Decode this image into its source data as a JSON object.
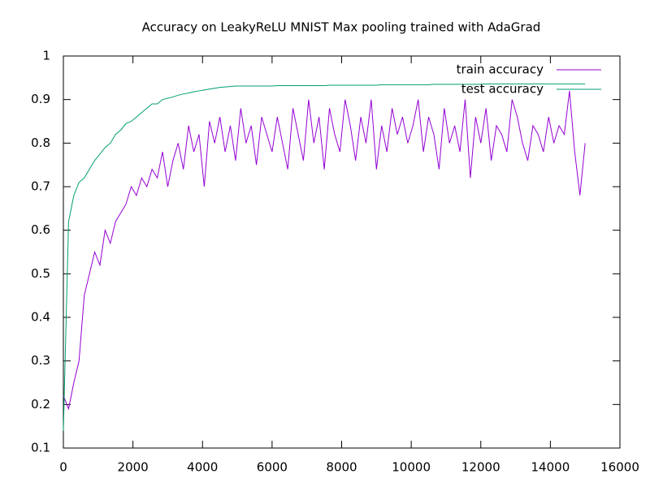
{
  "chart_data": {
    "type": "line",
    "title": "Accuracy on LeakyReLU MNIST Max pooling trained with AdaGrad",
    "x": [
      0,
      150,
      300,
      450,
      600,
      750,
      900,
      1050,
      1200,
      1350,
      1500,
      1650,
      1800,
      1950,
      2100,
      2250,
      2400,
      2550,
      2700,
      2850,
      3000,
      3150,
      3300,
      3450,
      3600,
      3750,
      3900,
      4050,
      4200,
      4350,
      4500,
      4650,
      4800,
      4950,
      5100,
      5250,
      5400,
      5550,
      5700,
      5850,
      6000,
      6150,
      6300,
      6450,
      6600,
      6750,
      6900,
      7050,
      7200,
      7350,
      7500,
      7650,
      7800,
      7950,
      8100,
      8250,
      8400,
      8550,
      8700,
      8850,
      9000,
      9150,
      9300,
      9450,
      9600,
      9750,
      9900,
      10050,
      10200,
      10350,
      10500,
      10650,
      10800,
      10950,
      11100,
      11250,
      11400,
      11550,
      11700,
      11850,
      12000,
      12150,
      12300,
      12450,
      12600,
      12750,
      12900,
      13050,
      13200,
      13350,
      13500,
      13650,
      13800,
      13950,
      14100,
      14250,
      14400,
      14550,
      14700,
      14850,
      15000
    ],
    "series": [
      {
        "name": "train accuracy",
        "color": "#9400d3",
        "values": [
          0.22,
          0.19,
          0.25,
          0.3,
          0.45,
          0.5,
          0.55,
          0.52,
          0.6,
          0.57,
          0.62,
          0.64,
          0.66,
          0.7,
          0.68,
          0.72,
          0.7,
          0.74,
          0.72,
          0.78,
          0.7,
          0.76,
          0.8,
          0.74,
          0.84,
          0.78,
          0.82,
          0.7,
          0.85,
          0.8,
          0.86,
          0.78,
          0.84,
          0.76,
          0.88,
          0.8,
          0.84,
          0.75,
          0.86,
          0.82,
          0.78,
          0.86,
          0.8,
          0.74,
          0.88,
          0.82,
          0.76,
          0.9,
          0.8,
          0.86,
          0.74,
          0.88,
          0.82,
          0.78,
          0.9,
          0.84,
          0.76,
          0.86,
          0.8,
          0.9,
          0.74,
          0.84,
          0.78,
          0.88,
          0.82,
          0.86,
          0.8,
          0.84,
          0.9,
          0.78,
          0.86,
          0.82,
          0.74,
          0.88,
          0.8,
          0.84,
          0.78,
          0.9,
          0.72,
          0.86,
          0.8,
          0.88,
          0.76,
          0.84,
          0.82,
          0.78,
          0.9,
          0.86,
          0.8,
          0.76,
          0.84,
          0.82,
          0.78,
          0.86,
          0.8,
          0.84,
          0.82,
          0.92,
          0.78,
          0.68,
          0.8
        ]
      },
      {
        "name": "test accuracy",
        "color": "#009e73",
        "values": [
          0.14,
          0.62,
          0.68,
          0.71,
          0.72,
          0.74,
          0.76,
          0.775,
          0.79,
          0.8,
          0.82,
          0.83,
          0.845,
          0.85,
          0.86,
          0.87,
          0.88,
          0.89,
          0.89,
          0.9,
          0.903,
          0.906,
          0.91,
          0.913,
          0.915,
          0.918,
          0.92,
          0.922,
          0.924,
          0.926,
          0.928,
          0.929,
          0.93,
          0.931,
          0.931,
          0.931,
          0.931,
          0.931,
          0.931,
          0.931,
          0.931,
          0.932,
          0.932,
          0.932,
          0.932,
          0.932,
          0.932,
          0.932,
          0.932,
          0.932,
          0.932,
          0.933,
          0.933,
          0.933,
          0.933,
          0.933,
          0.933,
          0.933,
          0.933,
          0.933,
          0.933,
          0.934,
          0.934,
          0.934,
          0.934,
          0.934,
          0.934,
          0.934,
          0.934,
          0.934,
          0.934,
          0.935,
          0.935,
          0.935,
          0.935,
          0.935,
          0.935,
          0.935,
          0.935,
          0.935,
          0.935,
          0.936,
          0.936,
          0.936,
          0.936,
          0.936,
          0.936,
          0.936,
          0.936,
          0.936,
          0.936,
          0.936,
          0.936,
          0.936,
          0.936,
          0.936,
          0.936,
          0.936,
          0.936,
          0.936,
          0.936
        ]
      }
    ],
    "xlim": [
      0,
      16000
    ],
    "xticks": [
      0,
      2000,
      4000,
      6000,
      8000,
      10000,
      12000,
      14000,
      16000
    ],
    "ylim": [
      0.1,
      1
    ],
    "yticks": [
      0.1,
      0.2,
      0.3,
      0.4,
      0.5,
      0.6,
      0.7,
      0.8,
      0.9,
      1
    ],
    "grid": false,
    "legend": "top-right"
  }
}
